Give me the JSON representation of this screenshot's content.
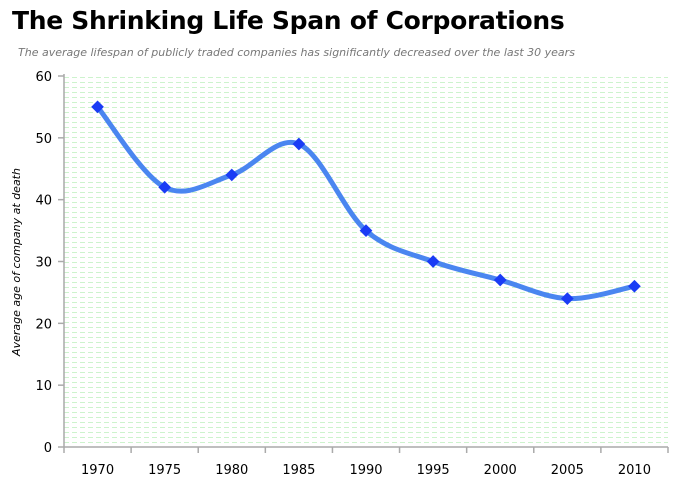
{
  "chart_data": {
    "type": "line",
    "title": "The Shrinking Life Span of Corporations",
    "subtitle": "The average lifespan of publicly traded companies has significantly decreased over the last 30 years",
    "xlabel": "",
    "ylabel": "Average age of company at death",
    "categories": [
      "1970",
      "1975",
      "1980",
      "1985",
      "1990",
      "1995",
      "2000",
      "2005",
      "2010"
    ],
    "values": [
      55,
      42,
      44,
      49,
      35,
      30,
      27,
      24,
      26
    ],
    "ylim": [
      0,
      60
    ],
    "yticks": [
      0,
      10,
      20,
      30,
      40,
      50,
      60
    ],
    "smooth": true,
    "grid": false,
    "legend": "none",
    "colors": {
      "line": "#4a86f0",
      "marker": "#1a3cf5",
      "plot_bg": "#d6f7d6"
    }
  }
}
